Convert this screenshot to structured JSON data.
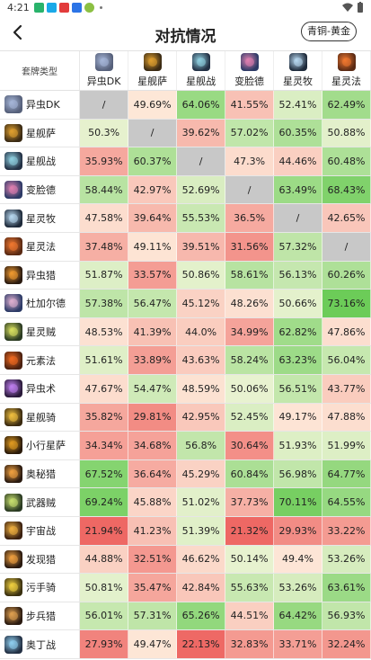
{
  "status_bar": {
    "time": "4:21"
  },
  "header": {
    "title": "对抗情况",
    "rank_filter": "青铜-黄金"
  },
  "table": {
    "corner_label": "套牌类型",
    "columns": [
      {
        "label": "异虫DK",
        "icon": "undead-dk-icon",
        "color": "#56607a",
        "accent": "#a6b6d8"
      },
      {
        "label": "星舰萨",
        "icon": "shaman-icon",
        "color": "#3a2a14",
        "accent": "#e0a030"
      },
      {
        "label": "星舰战",
        "icon": "warrior-icon",
        "color": "#233044",
        "accent": "#8fd0e0"
      },
      {
        "label": "变脸德",
        "icon": "druid-icon",
        "color": "#2c3a66",
        "accent": "#e080b0"
      },
      {
        "label": "星灵牧",
        "icon": "priest-icon",
        "color": "#1e2a3a",
        "accent": "#b8d8f0"
      },
      {
        "label": "星灵法",
        "icon": "mage-icon",
        "color": "#5a2a14",
        "accent": "#f07830"
      }
    ],
    "rows": [
      {
        "label": "异虫DK",
        "icon": "undead-dk-icon",
        "color": "#56607a",
        "accent": "#a6b6d8",
        "values": [
          "/",
          "49.69%",
          "64.06%",
          "41.55%",
          "52.41%",
          "62.49%"
        ]
      },
      {
        "label": "星舰萨",
        "icon": "shaman-icon",
        "color": "#3a2a14",
        "accent": "#e0a030",
        "values": [
          "50.3%",
          "/",
          "39.62%",
          "57.02%",
          "60.35%",
          "50.88%"
        ]
      },
      {
        "label": "星舰战",
        "icon": "warrior-icon",
        "color": "#233044",
        "accent": "#8fd0e0",
        "values": [
          "35.93%",
          "60.37%",
          "/",
          "47.3%",
          "44.46%",
          "60.48%"
        ]
      },
      {
        "label": "变脸德",
        "icon": "druid-icon",
        "color": "#2c3a66",
        "accent": "#e080b0",
        "values": [
          "58.44%",
          "42.97%",
          "52.69%",
          "/",
          "63.49%",
          "68.43%"
        ]
      },
      {
        "label": "星灵牧",
        "icon": "priest-icon",
        "color": "#1e2a3a",
        "accent": "#b8d8f0",
        "values": [
          "47.58%",
          "39.64%",
          "55.53%",
          "36.5%",
          "/",
          "42.65%"
        ]
      },
      {
        "label": "星灵法",
        "icon": "mage-icon",
        "color": "#5a2a14",
        "accent": "#f07830",
        "values": [
          "37.48%",
          "49.11%",
          "39.51%",
          "31.56%",
          "57.32%",
          "/"
        ]
      },
      {
        "label": "异虫猎",
        "icon": "hunter-icon",
        "color": "#2a1a10",
        "accent": "#f09a30",
        "values": [
          "51.87%",
          "33.57%",
          "50.86%",
          "58.61%",
          "56.13%",
          "60.26%"
        ]
      },
      {
        "label": "杜加尔德",
        "icon": "druid-icon",
        "color": "#2c3a66",
        "accent": "#e0b0d0",
        "values": [
          "57.38%",
          "56.47%",
          "45.12%",
          "48.26%",
          "50.66%",
          "73.16%"
        ]
      },
      {
        "label": "星灵贼",
        "icon": "rogue-icon",
        "color": "#2a3a22",
        "accent": "#d8e060",
        "values": [
          "48.53%",
          "41.39%",
          "44.0%",
          "34.99%",
          "62.82%",
          "47.86%"
        ]
      },
      {
        "label": "元素法",
        "icon": "elemental-mage-icon",
        "color": "#4a2010",
        "accent": "#f06a20",
        "values": [
          "51.61%",
          "33.89%",
          "43.63%",
          "58.24%",
          "63.23%",
          "56.04%"
        ]
      },
      {
        "label": "异虫术",
        "icon": "warlock-icon",
        "color": "#2a1a3a",
        "accent": "#c080f0",
        "values": [
          "47.67%",
          "54.47%",
          "48.59%",
          "50.06%",
          "56.51%",
          "43.77%"
        ]
      },
      {
        "label": "星舰骑",
        "icon": "paladin-icon",
        "color": "#3a2a10",
        "accent": "#f0c040",
        "values": [
          "35.82%",
          "29.81%",
          "42.95%",
          "52.45%",
          "49.17%",
          "47.88%"
        ]
      },
      {
        "label": "小行星萨",
        "icon": "shaman-icon",
        "color": "#2a1a0a",
        "accent": "#e09a20",
        "values": [
          "34.34%",
          "34.68%",
          "56.8%",
          "30.64%",
          "51.93%",
          "51.99%"
        ]
      },
      {
        "label": "奥秘猎",
        "icon": "hunter-icon",
        "color": "#2a1a10",
        "accent": "#f0a040",
        "values": [
          "67.52%",
          "36.64%",
          "45.29%",
          "60.84%",
          "56.98%",
          "64.77%"
        ]
      },
      {
        "label": "武器贼",
        "icon": "rogue-icon",
        "color": "#2a3a22",
        "accent": "#c8e070",
        "values": [
          "69.24%",
          "45.88%",
          "51.02%",
          "37.73%",
          "70.11%",
          "64.55%"
        ]
      },
      {
        "label": "宇宙战",
        "icon": "warrior-icon",
        "color": "#3a2010",
        "accent": "#f0b040",
        "values": [
          "21.94%",
          "41.23%",
          "51.39%",
          "21.32%",
          "29.93%",
          "33.22%"
        ]
      },
      {
        "label": "发现猎",
        "icon": "hunter-icon",
        "color": "#2a1a10",
        "accent": "#f0a040",
        "values": [
          "44.88%",
          "32.51%",
          "46.62%",
          "50.14%",
          "49.4%",
          "53.26%"
        ]
      },
      {
        "label": "污手骑",
        "icon": "paladin-icon",
        "color": "#3a3010",
        "accent": "#f0d040",
        "values": [
          "50.81%",
          "35.47%",
          "42.84%",
          "55.63%",
          "53.26%",
          "63.61%"
        ]
      },
      {
        "label": "步兵猎",
        "icon": "hunter-icon",
        "color": "#2a1a10",
        "accent": "#e0a050",
        "values": [
          "56.01%",
          "57.31%",
          "65.26%",
          "44.51%",
          "64.42%",
          "56.93%"
        ]
      },
      {
        "label": "奥丁战",
        "icon": "warrior-icon",
        "color": "#233044",
        "accent": "#90d0f0",
        "values": [
          "27.93%",
          "49.47%",
          "22.13%",
          "32.83%",
          "33.71%",
          "32.24%"
        ]
      }
    ]
  }
}
